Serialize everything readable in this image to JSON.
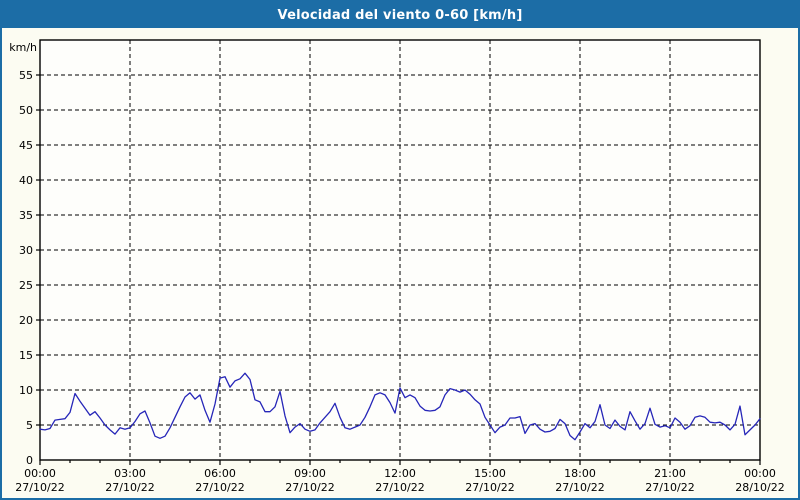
{
  "title": "Velocidad del viento 0-60 [km/h]",
  "colors": {
    "titlebar_bg": "#1c6da6",
    "title_text": "#ffffff",
    "window_border": "#1c6da6",
    "background": "#fcfcf2",
    "plot_background": "#fefefb",
    "line": "#2626b8",
    "grid": "#000000",
    "axis": "#000000",
    "label_text": "#000000"
  },
  "chart_data": {
    "type": "line",
    "title": "Velocidad del viento 0-60 [km/h]",
    "unit_label": "km/h",
    "ylim": [
      0,
      60
    ],
    "ytick_step": 5,
    "ytick_labels": [
      "0",
      "5",
      "10",
      "15",
      "20",
      "25",
      "30",
      "35",
      "40",
      "45",
      "50",
      "55"
    ],
    "grid": "dashed black; horizontal every 5 km/h, vertical every 3 h",
    "legend": "none",
    "x_axis": {
      "total_hours": 24,
      "major_tick_hours": 3,
      "minor_tick_hours": 1,
      "tick_labels": [
        {
          "time": "00:00",
          "date": "27/10/22"
        },
        {
          "time": "03:00",
          "date": "27/10/22"
        },
        {
          "time": "06:00",
          "date": "27/10/22"
        },
        {
          "time": "09:00",
          "date": "27/10/22"
        },
        {
          "time": "12:00",
          "date": "27/10/22"
        },
        {
          "time": "15:00",
          "date": "27/10/22"
        },
        {
          "time": "18:00",
          "date": "27/10/22"
        },
        {
          "time": "21:00",
          "date": "27/10/22"
        },
        {
          "time": "00:00",
          "date": "28/10/22"
        }
      ]
    },
    "series": [
      {
        "name": "Velocidad del viento",
        "unit": "km/h",
        "start_time": "00:00",
        "sample_interval_minutes": 10,
        "values_kmh": [
          4.4,
          4.3,
          4.5,
          5.7,
          5.8,
          5.9,
          6.8,
          9.5,
          8.4,
          7.4,
          6.4,
          6.9,
          6.0,
          5.0,
          4.3,
          3.7,
          4.6,
          4.4,
          4.6,
          5.5,
          6.6,
          7.0,
          5.3,
          3.4,
          3.1,
          3.4,
          4.6,
          6.1,
          7.6,
          9.0,
          9.6,
          8.7,
          9.3,
          7.1,
          5.4,
          8.0,
          11.7,
          11.9,
          10.4,
          11.3,
          11.6,
          12.4,
          11.5,
          8.6,
          8.3,
          6.9,
          6.9,
          7.6,
          9.8,
          6.3,
          3.9,
          4.7,
          5.2,
          4.4,
          4.1,
          4.3,
          5.3,
          6.1,
          6.9,
          8.1,
          6.1,
          4.6,
          4.4,
          4.7,
          5.0,
          6.1,
          7.6,
          9.3,
          9.6,
          9.3,
          8.2,
          6.7,
          10.3,
          8.9,
          9.3,
          8.9,
          7.7,
          7.1,
          7.0,
          7.1,
          7.6,
          9.3,
          10.2,
          10.0,
          9.7,
          10.0,
          9.4,
          8.6,
          8.0,
          6.1,
          5.0,
          3.9,
          4.7,
          5.0,
          6.0,
          6.0,
          6.2,
          3.8,
          5.0,
          5.2,
          4.4,
          4.0,
          4.1,
          4.5,
          5.8,
          5.2,
          3.5,
          2.9,
          4.0,
          5.2,
          4.6,
          5.5,
          7.9,
          5.0,
          4.5,
          5.7,
          4.8,
          4.3,
          6.9,
          5.6,
          4.4,
          5.2,
          7.4,
          5.1,
          4.7,
          4.9,
          4.6,
          6.0,
          5.4,
          4.4,
          4.9,
          6.1,
          6.3,
          6.1,
          5.4,
          5.3,
          5.4,
          5.0,
          4.3,
          5.1,
          7.7,
          3.6,
          4.3,
          5.0,
          5.9
        ]
      }
    ]
  }
}
